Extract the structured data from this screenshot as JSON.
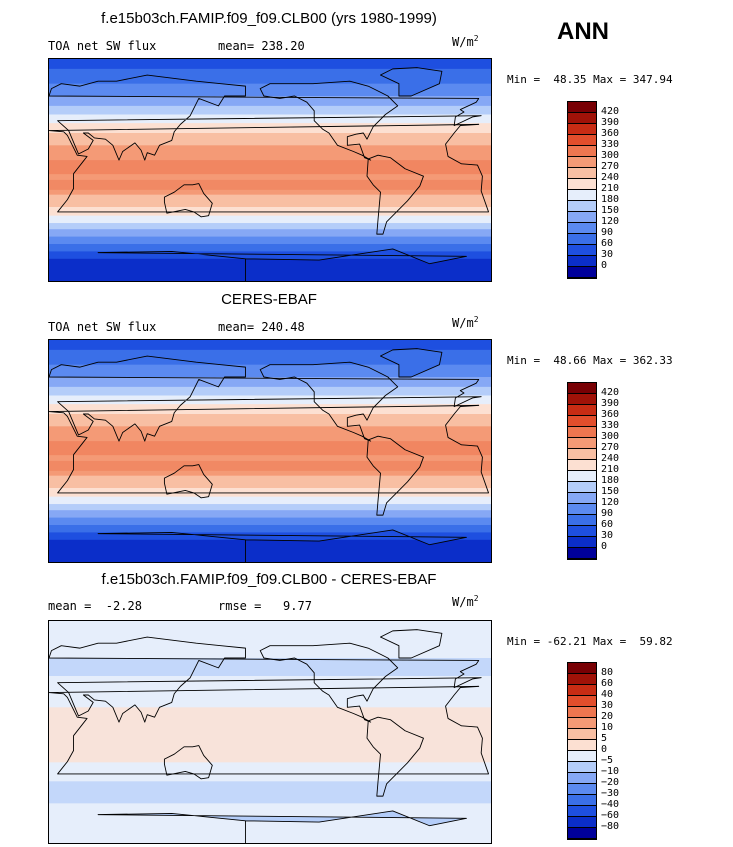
{
  "season": "ANN",
  "panels": [
    {
      "title": "f.e15b03ch.FAMIP.f09_f09.CLB00 (yrs 1980-1999)",
      "left_label": "TOA net SW flux",
      "mid_label": "mean= 238.20",
      "units_base": "W/m",
      "units_exp": "2",
      "minmax": "Min =  48.35 Max = 347.94",
      "map_kind": "abs",
      "colorbar": {
        "colors": [
          "#00009a",
          "#0b2ec9",
          "#1e4fe0",
          "#3a6fe8",
          "#5b8af0",
          "#86a8f5",
          "#b4cdf9",
          "#e6eefb",
          "#fce0d2",
          "#f8bfa3",
          "#f49a76",
          "#ee7650",
          "#e24e2c",
          "#c82c14",
          "#a01208",
          "#780004"
        ],
        "labels": [
          "420",
          "390",
          "360",
          "330",
          "300",
          "270",
          "240",
          "210",
          "180",
          "150",
          "120",
          "90",
          "60",
          "30",
          "0"
        ]
      }
    },
    {
      "title": "CERES-EBAF",
      "left_label": "TOA net SW flux",
      "mid_label": "mean= 240.48",
      "units_base": "W/m",
      "units_exp": "2",
      "minmax": "Min =  48.66 Max = 362.33",
      "map_kind": "abs",
      "colorbar": {
        "colors": [
          "#00009a",
          "#0b2ec9",
          "#1e4fe0",
          "#3a6fe8",
          "#5b8af0",
          "#86a8f5",
          "#b4cdf9",
          "#e6eefb",
          "#fce0d2",
          "#f8bfa3",
          "#f49a76",
          "#ee7650",
          "#e24e2c",
          "#c82c14",
          "#a01208",
          "#780004"
        ],
        "labels": [
          "420",
          "390",
          "360",
          "330",
          "300",
          "270",
          "240",
          "210",
          "180",
          "150",
          "120",
          "90",
          "60",
          "30",
          "0"
        ]
      }
    },
    {
      "title": "f.e15b03ch.FAMIP.f09_f09.CLB00 - CERES-EBAF",
      "left_label": "mean =  -2.28",
      "mid_label": "rmse =   9.77",
      "units_base": "W/m",
      "units_exp": "2",
      "minmax": "Min = -62.21 Max =  59.82",
      "map_kind": "diff",
      "colorbar": {
        "colors": [
          "#00009a",
          "#0b2ec9",
          "#1e4fe0",
          "#3a6fe8",
          "#5b8af0",
          "#86a8f5",
          "#b4cdf9",
          "#e6eefb",
          "#fce0d2",
          "#f8bfa3",
          "#f49a76",
          "#ee7650",
          "#e24e2c",
          "#c82c14",
          "#a01208",
          "#780004"
        ],
        "labels": [
          "80",
          "60",
          "40",
          "30",
          "20",
          "10",
          "5",
          "0",
          "−5",
          "−10",
          "−20",
          "−30",
          "−40",
          "−60",
          "−80"
        ]
      }
    }
  ]
}
